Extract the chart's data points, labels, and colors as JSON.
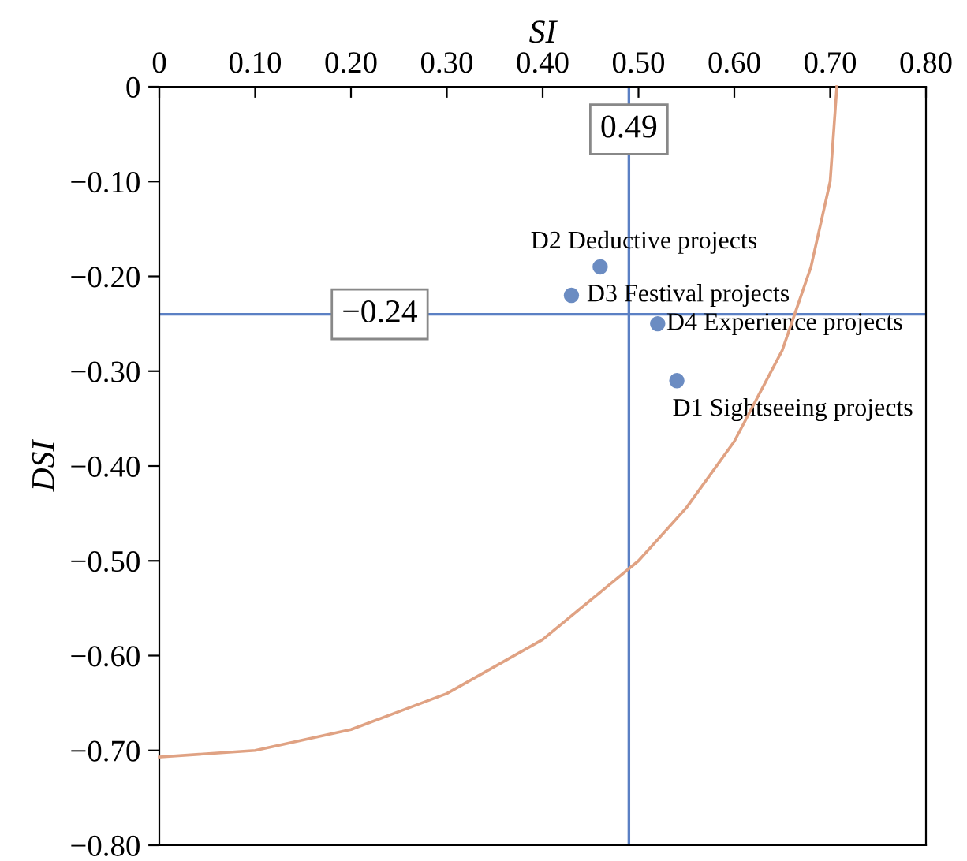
{
  "chart_data": {
    "type": "scatter",
    "xlabel": "SI",
    "ylabel": "DSI",
    "xlim": [
      0,
      0.8
    ],
    "ylim": [
      -0.8,
      0
    ],
    "xticks": [
      0,
      {
        "value": 0.1,
        "label": "0.10"
      },
      {
        "value": 0.2,
        "label": "0.20"
      },
      {
        "value": 0.3,
        "label": "0.30"
      },
      {
        "value": 0.4,
        "label": "0.40"
      },
      {
        "value": 0.5,
        "label": "0.50"
      },
      {
        "value": 0.6,
        "label": "0.60"
      },
      {
        "value": 0.7,
        "label": "0.70"
      },
      {
        "value": 0.8,
        "label": "0.80"
      }
    ],
    "yticks": [
      0,
      {
        "value": -0.1,
        "label": "−0.10"
      },
      {
        "value": -0.2,
        "label": "−0.20"
      },
      {
        "value": -0.3,
        "label": "−0.30"
      },
      {
        "value": -0.4,
        "label": "−0.40"
      },
      {
        "value": -0.5,
        "label": "−0.50"
      },
      {
        "value": -0.6,
        "label": "−0.60"
      },
      {
        "value": -0.7,
        "label": "−0.70"
      },
      {
        "value": -0.8,
        "label": "−0.80"
      }
    ],
    "series": [
      {
        "type": "scatter",
        "color": "#6b8cc2",
        "marker": "circle",
        "x": [
          0.54,
          0.46,
          0.43,
          0.52
        ],
        "values": [
          -0.31,
          -0.19,
          -0.22,
          -0.25
        ]
      },
      {
        "type": "line",
        "color": "#e0a283",
        "marker": "none",
        "x": [
          0,
          0.1,
          0.2,
          0.3,
          0.4,
          0.5,
          0.55,
          0.6,
          0.65,
          0.68,
          0.7,
          0.707
        ],
        "values": [
          -0.707,
          -0.7,
          -0.678,
          -0.64,
          -0.583,
          -0.5,
          -0.444,
          -0.374,
          -0.278,
          -0.19,
          -0.1,
          0
        ]
      }
    ],
    "ref_lines": [
      {
        "axis": "x",
        "value": 0.49,
        "label": "0.49",
        "color": "#5b80c4"
      },
      {
        "axis": "y",
        "value": -0.24,
        "label": "−0.24",
        "color": "#5b80c4"
      }
    ],
    "annotations": [
      {
        "text": "D1 Sightseeing projects",
        "x": 0.54,
        "y": -0.31
      },
      {
        "text": "D2 Deductive projects",
        "x": 0.46,
        "y": -0.19
      },
      {
        "text": "D3 Festival projects",
        "x": 0.43,
        "y": -0.22
      },
      {
        "text": "D4 Experience projects",
        "x": 0.52,
        "y": -0.25
      }
    ],
    "grid": false,
    "legend": false
  }
}
